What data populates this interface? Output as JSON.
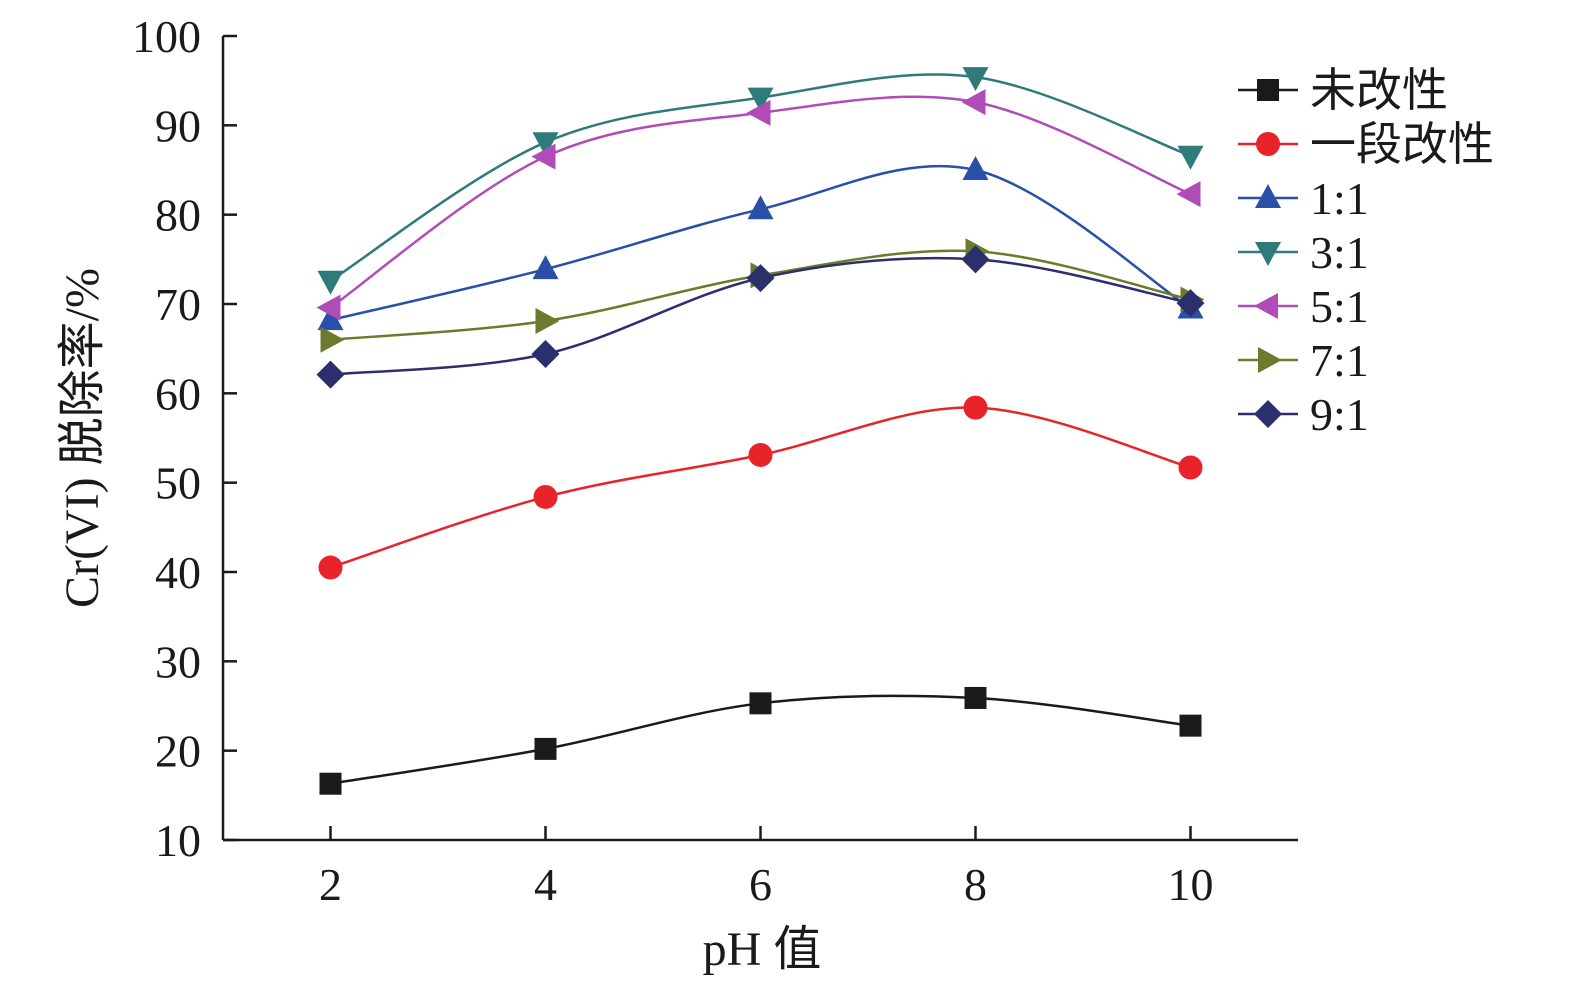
{
  "chart_data": {
    "type": "line",
    "xlabel": "pH 值",
    "ylabel": "Cr(VI) 脱除率/%",
    "xlim": [
      1,
      11
    ],
    "ylim": [
      10,
      100
    ],
    "x_ticks": [
      "2",
      "4",
      "6",
      "8",
      "10"
    ],
    "y_ticks": [
      "10",
      "20",
      "30",
      "40",
      "50",
      "60",
      "70",
      "80",
      "90",
      "100"
    ],
    "x": [
      2,
      4,
      6,
      8,
      10
    ],
    "grid": false,
    "legend_position": "top-right",
    "series": [
      {
        "name": "未改性",
        "color": "#1a1a1a",
        "marker": "square",
        "values": [
          16.3,
          20.2,
          25.3,
          25.9,
          22.8
        ]
      },
      {
        "name": "一段改性",
        "color": "#e8232a",
        "marker": "circle",
        "values": [
          40.5,
          48.4,
          53.1,
          58.4,
          51.7
        ]
      },
      {
        "name": "1:1",
        "color": "#2a4fa8",
        "marker": "triangle-up",
        "values": [
          68.2,
          73.9,
          80.6,
          85.0,
          69.5
        ]
      },
      {
        "name": "3:1",
        "color": "#2f7a7a",
        "marker": "triangle-down",
        "values": [
          72.6,
          88.1,
          93.1,
          95.4,
          86.6
        ]
      },
      {
        "name": "5:1",
        "color": "#b04cb8",
        "marker": "triangle-left",
        "values": [
          69.6,
          86.5,
          91.4,
          92.6,
          82.3
        ]
      },
      {
        "name": "7:1",
        "color": "#6b7a2c",
        "marker": "triangle-right",
        "values": [
          66.0,
          68.1,
          73.2,
          75.9,
          70.5
        ]
      },
      {
        "name": "9:1",
        "color": "#2b2f6b",
        "marker": "diamond",
        "values": [
          62.1,
          64.4,
          72.9,
          75.0,
          70.1
        ]
      }
    ]
  }
}
